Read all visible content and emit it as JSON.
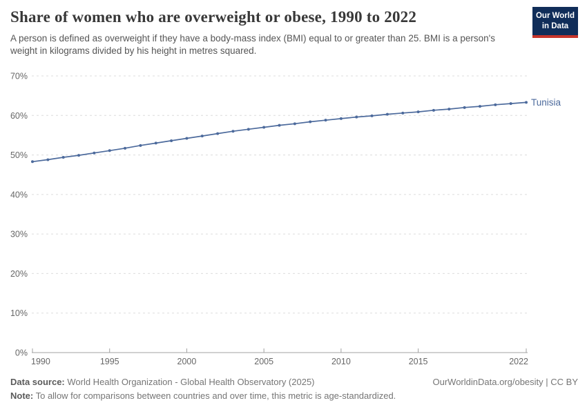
{
  "header": {
    "title": "Share of women who are overweight or obese, 1990 to 2022",
    "subtitle": "A person is defined as overweight if they have a body-mass index (BMI) equal to or greater than 25. BMI is a person's weight in kilograms divided by his height in metres squared.",
    "logo": {
      "line1": "Our World",
      "line2": "in Data",
      "bg_color": "#102d59",
      "stripe_color": "#c7352b"
    }
  },
  "chart_data": {
    "type": "line",
    "title": "Share of women who are overweight or obese, 1990 to 2022",
    "xlabel": "",
    "ylabel": "",
    "x": [
      1990,
      1991,
      1992,
      1993,
      1994,
      1995,
      1996,
      1997,
      1998,
      1999,
      2000,
      2001,
      2002,
      2003,
      2004,
      2005,
      2006,
      2007,
      2008,
      2009,
      2010,
      2011,
      2012,
      2013,
      2014,
      2015,
      2016,
      2017,
      2018,
      2019,
      2020,
      2021,
      2022
    ],
    "series": [
      {
        "name": "Tunisia",
        "color": "#4C6A9C",
        "values": [
          48.3,
          48.8,
          49.4,
          49.9,
          50.5,
          51.1,
          51.7,
          52.4,
          53.0,
          53.6,
          54.2,
          54.8,
          55.4,
          56.0,
          56.5,
          57.0,
          57.5,
          57.9,
          58.4,
          58.8,
          59.2,
          59.6,
          59.9,
          60.3,
          60.6,
          60.9,
          61.3,
          61.6,
          62.0,
          62.3,
          62.7,
          63.0,
          63.3
        ]
      }
    ],
    "ylim": [
      0,
      70
    ],
    "y_ticks": [
      0,
      10,
      20,
      30,
      40,
      50,
      60,
      70
    ],
    "y_tick_suffix": "%",
    "x_ticks": [
      1990,
      1995,
      2000,
      2005,
      2010,
      2015,
      2022
    ],
    "grid": "horizontal-dashed",
    "grid_color": "#dcdcdc",
    "axis_color": "#a1a1a1",
    "legend": "end-of-line-label",
    "end_label": "Tunisia"
  },
  "footer": {
    "datasource_label": "Data source:",
    "datasource_text": " World Health Organization - Global Health Observatory (2025)",
    "note_label": "Note:",
    "note_text": " To allow for comparisons between countries and over time, this metric is age-standardized.",
    "rights": "OurWorldinData.org/obesity | CC BY"
  }
}
